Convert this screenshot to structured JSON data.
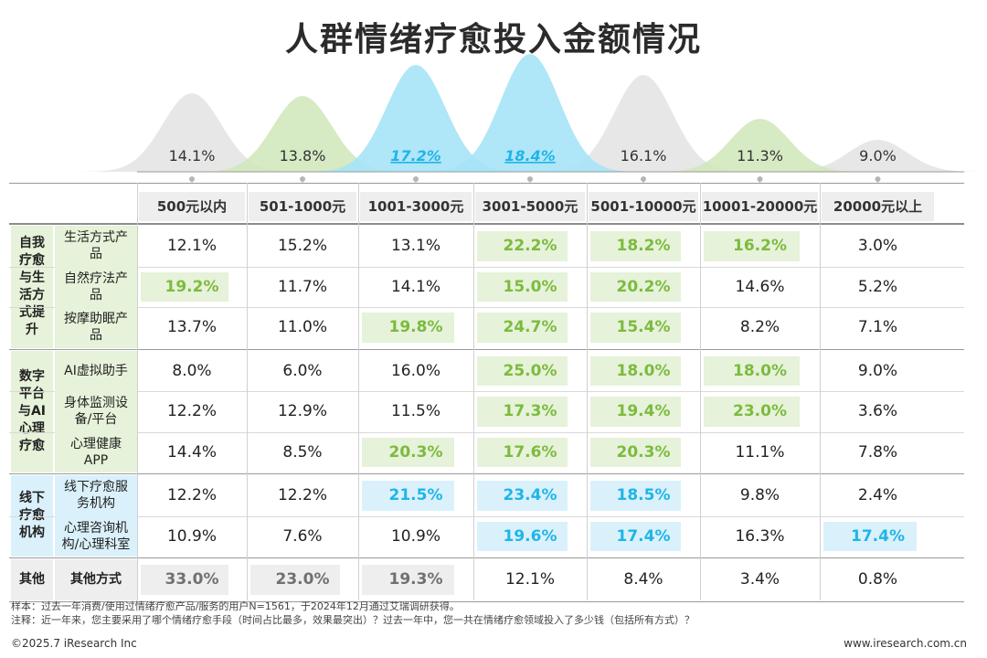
{
  "title": "人群情绪疗愈投入金额情况",
  "chart_data": {
    "type": "table",
    "columns": [
      "500元以内",
      "501-1000元",
      "1001-3000元",
      "3001-5000元",
      "5001-10000元",
      "10001-20000元",
      "20000元以上"
    ],
    "overall": [
      "14.1%",
      "13.8%",
      "17.2%",
      "18.4%",
      "16.1%",
      "11.3%",
      "9.0%"
    ],
    "overall_values": [
      14.1,
      13.8,
      17.2,
      18.4,
      16.1,
      11.3,
      9.0
    ],
    "overall_highlight": [
      "gray",
      "green",
      "blue",
      "blue",
      "gray",
      "green",
      "gray"
    ],
    "groups": [
      {
        "label": "自我疗愈与生活方式提升",
        "color": "green",
        "rows": [
          {
            "label": "生活方式产品",
            "values": [
              "12.1%",
              "15.2%",
              "13.1%",
              "22.2%",
              "18.2%",
              "16.2%",
              "3.0%"
            ],
            "highlight": [
              0,
              0,
              0,
              1,
              1,
              1,
              0
            ]
          },
          {
            "label": "自然疗法产品",
            "values": [
              "19.2%",
              "11.7%",
              "14.1%",
              "15.0%",
              "20.2%",
              "14.6%",
              "5.2%"
            ],
            "highlight": [
              1,
              0,
              0,
              1,
              1,
              0,
              0
            ]
          },
          {
            "label": "按摩助眠产品",
            "values": [
              "13.7%",
              "11.0%",
              "19.8%",
              "24.7%",
              "15.4%",
              "8.2%",
              "7.1%"
            ],
            "highlight": [
              0,
              0,
              1,
              1,
              1,
              0,
              0
            ]
          }
        ]
      },
      {
        "label": "数字平台与AI心理疗愈",
        "color": "green",
        "rows": [
          {
            "label": "AI虚拟助手",
            "values": [
              "8.0%",
              "6.0%",
              "16.0%",
              "25.0%",
              "18.0%",
              "18.0%",
              "9.0%"
            ],
            "highlight": [
              0,
              0,
              0,
              1,
              1,
              1,
              0
            ]
          },
          {
            "label": "身体监测设备/平台",
            "values": [
              "12.2%",
              "12.9%",
              "11.5%",
              "17.3%",
              "19.4%",
              "23.0%",
              "3.6%"
            ],
            "highlight": [
              0,
              0,
              0,
              1,
              1,
              1,
              0
            ]
          },
          {
            "label": "心理健康APP",
            "values": [
              "14.4%",
              "8.5%",
              "20.3%",
              "17.6%",
              "20.3%",
              "11.1%",
              "7.8%"
            ],
            "highlight": [
              0,
              0,
              1,
              1,
              1,
              0,
              0
            ]
          }
        ]
      },
      {
        "label": "线下疗愈机构",
        "color": "blue",
        "rows": [
          {
            "label": "线下疗愈服务机构",
            "values": [
              "12.2%",
              "12.2%",
              "21.5%",
              "23.4%",
              "18.5%",
              "9.8%",
              "2.4%"
            ],
            "highlight": [
              0,
              0,
              1,
              1,
              1,
              0,
              0
            ]
          },
          {
            "label": "心理咨询机构/心理科室",
            "values": [
              "10.9%",
              "7.6%",
              "10.9%",
              "19.6%",
              "17.4%",
              "16.3%",
              "17.4%"
            ],
            "highlight": [
              0,
              0,
              0,
              1,
              1,
              0,
              1
            ]
          }
        ]
      },
      {
        "label": "其他",
        "color": "gray",
        "rows": [
          {
            "label": "其他方式",
            "values": [
              "33.0%",
              "23.0%",
              "19.3%",
              "12.1%",
              "8.4%",
              "3.4%",
              "0.8%"
            ],
            "highlight": [
              1,
              1,
              1,
              0,
              0,
              0,
              0
            ]
          }
        ]
      }
    ]
  },
  "colors": {
    "green": "#7cbb3e",
    "green_fill": "#e6f2d9",
    "green_bell": "#cfe6b8",
    "blue": "#1fb5e8",
    "blue_fill": "#daf1fb",
    "blue_bell": "#a6e3f7",
    "gray": "#707070",
    "gray_fill": "#eeeeee",
    "gray_bell": "#e3e3e3"
  },
  "footer": {
    "sample_note": "样本：过去一年消费/使用过情绪疗愈产品/服务的用户N=1561，于2024年12月通过艾瑞调研获得。",
    "question_note": "注释：近一年来，您主要采用了哪个情绪疗愈手段（时间占比最多，效果最突出）？过去一年中，您一共在情绪疗愈领域投入了多少钱（包括所有方式）？",
    "copyright": "©2025.7 iResearch Inc",
    "website": "www.iresearch.com.cn"
  }
}
